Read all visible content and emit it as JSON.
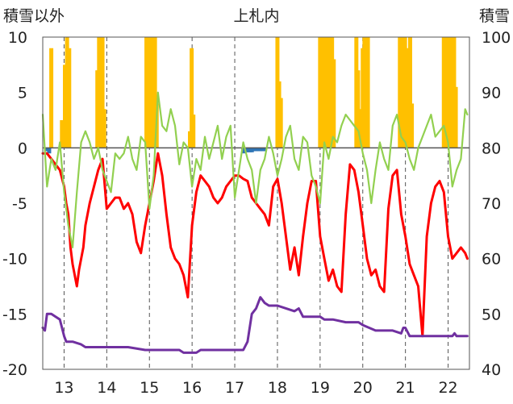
{
  "chart_data": {
    "type": "line",
    "title": "上札内",
    "ylabel_left": "積雪以外",
    "ylabel_right": "積雪",
    "ylim_left": [
      -20,
      10
    ],
    "ylim_right": [
      40,
      100
    ],
    "yticks_left": [
      "10",
      "5",
      "0",
      "-5",
      "-10",
      "-15",
      "-20"
    ],
    "yticks_right": [
      "100",
      "90",
      "80",
      "70",
      "60",
      "50",
      "40"
    ],
    "xlim": [
      12.5,
      22.5
    ],
    "xticks": [
      "13",
      "14",
      "15",
      "16",
      "17",
      "18",
      "19",
      "20",
      "21",
      "22"
    ],
    "grid": "dashed vertical at each year tick, zero line",
    "colors": {
      "red": "#ff0000",
      "green": "#92d050",
      "purple": "#7030a0",
      "bar_orange": "#ffc000",
      "bar_blue": "#2e75b6"
    },
    "series": [
      {
        "color": "#ff0000",
        "axis": "left",
        "x": [
          12.5,
          12.6,
          12.7,
          12.8,
          12.9,
          13.0,
          13.05,
          13.1,
          13.15,
          13.2,
          13.3,
          13.35,
          13.45,
          13.5,
          13.6,
          13.7,
          13.8,
          13.9,
          14.0,
          14.1,
          14.2,
          14.3,
          14.4,
          14.5,
          14.6,
          14.7,
          14.8,
          14.9,
          15.0,
          15.1,
          15.2,
          15.3,
          15.4,
          15.5,
          15.6,
          15.7,
          15.8,
          15.9,
          16.0,
          16.1,
          16.2,
          16.3,
          16.4,
          16.5,
          16.6,
          16.7,
          16.8,
          16.9,
          17.0,
          17.1,
          17.2,
          17.3,
          17.4,
          17.5,
          17.6,
          17.7,
          17.8,
          17.9,
          18.0,
          18.1,
          18.2,
          18.3,
          18.4,
          18.5,
          18.6,
          18.7,
          18.8,
          18.9,
          19.0,
          19.1,
          19.2,
          19.3,
          19.4,
          19.5,
          19.6,
          19.7,
          19.8,
          19.9,
          20.0,
          20.1,
          20.2,
          20.3,
          20.4,
          20.5,
          20.6,
          20.7,
          20.8,
          20.9,
          21.0,
          21.1,
          21.2,
          21.3,
          21.4,
          21.5,
          21.6,
          21.7,
          21.8,
          21.9,
          22.0,
          22.1,
          22.2,
          22.3,
          22.4,
          22.45
        ],
        "y": [
          -0.5,
          -0.5,
          -1.0,
          -1.5,
          -2.0,
          -3.5,
          -5.0,
          -6.0,
          -9.0,
          -10.5,
          -12.5,
          -11.0,
          -9.0,
          -7.0,
          -5.0,
          -3.5,
          -2.0,
          -1.0,
          -5.5,
          -5.0,
          -4.5,
          -4.5,
          -5.5,
          -5.0,
          -6.0,
          -8.5,
          -9.5,
          -7.0,
          -5.0,
          -3.0,
          -0.5,
          -2.5,
          -6.0,
          -9.0,
          -10.0,
          -10.5,
          -11.5,
          -13.5,
          -7.0,
          -4.0,
          -2.5,
          -3.0,
          -3.5,
          -4.5,
          -5.0,
          -4.5,
          -3.5,
          -3.0,
          -2.5,
          -2.5,
          -2.8,
          -3.0,
          -4.5,
          -5.0,
          -5.5,
          -6.0,
          -7.0,
          -3.5,
          -2.8,
          -5.0,
          -8.0,
          -11.0,
          -9.0,
          -11.5,
          -8.0,
          -5.0,
          -3.0,
          -3.0,
          -8.0,
          -10.0,
          -12.0,
          -11.0,
          -12.5,
          -13.0,
          -6.0,
          -1.5,
          -2.0,
          -4.0,
          -7.0,
          -10.0,
          -11.5,
          -11.0,
          -12.5,
          -13.0,
          -5.5,
          -2.5,
          -2.0,
          -6.0,
          -8.0,
          -10.5,
          -11.5,
          -12.5,
          -17.0,
          -8.0,
          -5.0,
          -3.5,
          -3.0,
          -4.0,
          -8.0,
          -10.0,
          -9.5,
          -9.0,
          -9.5,
          -10.0
        ]
      },
      {
        "color": "#92d050",
        "axis": "left",
        "x": [
          12.5,
          12.6,
          12.7,
          12.8,
          12.9,
          13.0,
          13.1,
          13.2,
          13.3,
          13.4,
          13.5,
          13.6,
          13.7,
          13.8,
          13.9,
          14.0,
          14.1,
          14.2,
          14.3,
          14.4,
          14.5,
          14.6,
          14.7,
          14.8,
          14.9,
          15.0,
          15.1,
          15.2,
          15.3,
          15.4,
          15.5,
          15.6,
          15.7,
          15.8,
          15.9,
          16.0,
          16.1,
          16.2,
          16.3,
          16.4,
          16.5,
          16.6,
          16.7,
          16.8,
          16.9,
          17.0,
          17.1,
          17.2,
          17.3,
          17.4,
          17.5,
          17.6,
          17.7,
          17.8,
          17.9,
          18.0,
          18.1,
          18.2,
          18.3,
          18.4,
          18.5,
          18.6,
          18.7,
          18.8,
          18.9,
          19.0,
          19.1,
          19.2,
          19.3,
          19.4,
          19.5,
          19.6,
          19.7,
          19.8,
          19.9,
          20.0,
          20.1,
          20.2,
          20.3,
          20.4,
          20.5,
          20.6,
          20.7,
          20.8,
          20.9,
          21.0,
          21.1,
          21.2,
          21.3,
          21.4,
          21.5,
          21.6,
          21.7,
          21.8,
          21.9,
          22.0,
          22.1,
          22.2,
          22.3,
          22.4,
          22.45
        ],
        "y": [
          3.0,
          -3.5,
          -1.0,
          -2.0,
          0.5,
          -4.0,
          -7.0,
          -9.0,
          -4.0,
          0.5,
          1.5,
          0.5,
          -1.0,
          0.0,
          -2.0,
          -3.0,
          -4.0,
          -0.5,
          -1.0,
          -0.5,
          1.0,
          -1.0,
          -2.0,
          1.0,
          0.5,
          -5.5,
          -2.5,
          5.0,
          2.0,
          1.5,
          3.5,
          2.0,
          -1.5,
          0.5,
          0.0,
          -3.5,
          -1.0,
          -2.0,
          1.0,
          -1.0,
          0.5,
          2.0,
          -1.0,
          1.0,
          2.0,
          -4.5,
          -2.0,
          0.5,
          -1.0,
          -2.0,
          -5.0,
          -2.0,
          -1.0,
          1.0,
          -0.5,
          -2.5,
          -1.0,
          1.0,
          2.0,
          -1.0,
          -2.0,
          1.0,
          0.5,
          -2.5,
          -3.5,
          -5.0,
          0.5,
          -1.0,
          1.0,
          0.5,
          2.0,
          3.0,
          2.5,
          2.0,
          1.5,
          -0.5,
          -2.0,
          -5.0,
          -2.0,
          0.5,
          -1.0,
          -2.0,
          2.0,
          3.0,
          1.0,
          0.5,
          -1.0,
          -2.0,
          0.0,
          1.0,
          2.0,
          3.0,
          1.0,
          1.5,
          2.0,
          0.5,
          -3.5,
          -2.0,
          -1.0,
          3.5,
          3.0
        ]
      },
      {
        "color": "#7030a0",
        "axis": "right",
        "x": [
          12.5,
          12.55,
          12.6,
          12.7,
          12.8,
          12.9,
          13.0,
          13.05,
          13.1,
          13.2,
          13.4,
          13.5,
          14.0,
          14.5,
          14.9,
          15.0,
          15.2,
          15.5,
          15.7,
          15.8,
          16.1,
          16.2,
          16.5,
          16.9,
          17.0,
          17.2,
          17.3,
          17.4,
          17.5,
          17.6,
          17.7,
          17.8,
          18.0,
          18.4,
          18.5,
          18.6,
          18.7,
          19.0,
          19.1,
          19.2,
          19.3,
          19.6,
          19.9,
          20.0,
          20.3,
          20.7,
          20.9,
          20.95,
          21.0,
          21.1,
          21.3,
          22.0,
          22.1,
          22.15,
          22.2,
          22.3,
          22.45
        ],
        "y": [
          47.5,
          47.0,
          50.0,
          50.0,
          49.5,
          49.0,
          46.0,
          45.0,
          45.0,
          45.0,
          44.5,
          44.0,
          44.0,
          44.0,
          43.5,
          43.5,
          43.5,
          43.5,
          43.5,
          43.0,
          43.0,
          43.5,
          43.5,
          43.5,
          43.5,
          43.5,
          45.0,
          50.0,
          51.0,
          53.0,
          52.0,
          51.5,
          51.5,
          50.5,
          51.0,
          49.5,
          49.5,
          49.5,
          49.0,
          49.0,
          49.0,
          48.5,
          48.5,
          48.0,
          47.0,
          47.0,
          46.5,
          47.5,
          47.5,
          46.0,
          46.0,
          46.0,
          46.0,
          46.5,
          46.0,
          46.0,
          46.0
        ]
      }
    ],
    "bars": [
      {
        "color": "#ffc000",
        "axis": "left",
        "x": [
          12.7,
          12.95,
          13.02,
          13.07,
          13.12,
          13.78,
          13.82,
          13.86,
          13.9,
          13.94,
          14.93,
          14.97,
          15.01,
          15.05,
          15.09,
          15.13,
          15.17,
          15.95,
          15.99,
          16.03,
          18.0,
          18.04,
          18.08,
          19.0,
          19.04,
          19.08,
          19.12,
          19.16,
          19.2,
          19.24,
          19.28,
          19.32,
          19.85,
          19.89,
          19.93,
          20.0,
          20.04,
          20.08,
          20.12,
          20.87,
          20.91,
          20.95,
          20.99,
          21.03,
          21.07,
          21.11,
          21.15,
          21.9,
          21.94,
          21.98,
          22.02,
          22.06,
          22.1,
          22.14,
          22.18
        ],
        "values": [
          9.0,
          2.5,
          7.5,
          10.0,
          9.0,
          7.0,
          10.0,
          6.0,
          10.0,
          3.5,
          10.0,
          8.0,
          10.0,
          9.0,
          10.0,
          10.0,
          4.0,
          1.5,
          9.0,
          3.0,
          10.0,
          6.0,
          4.5,
          10.0,
          9.0,
          10.0,
          10.0,
          7.5,
          10.0,
          10.0,
          10.0,
          8.0,
          10.0,
          7.0,
          3.5,
          9.0,
          10.0,
          9.5,
          10.0,
          10.0,
          8.5,
          10.0,
          10.0,
          7.0,
          9.0,
          10.0,
          4.0,
          10.0,
          10.0,
          10.0,
          9.0,
          10.0,
          10.0,
          10.0,
          5.5
        ]
      },
      {
        "color": "#2e75b6",
        "axis": "left",
        "x": [
          12.6,
          12.65,
          17.2,
          17.25,
          17.3,
          17.35,
          17.4,
          17.45,
          17.5,
          17.55,
          17.6,
          17.65,
          17.7
        ],
        "values": [
          -0.3,
          -0.5,
          -0.5,
          -0.4,
          -0.4,
          -0.4,
          -0.4,
          -0.3,
          -0.3,
          -0.3,
          -0.3,
          -0.3,
          -0.3
        ]
      }
    ]
  }
}
